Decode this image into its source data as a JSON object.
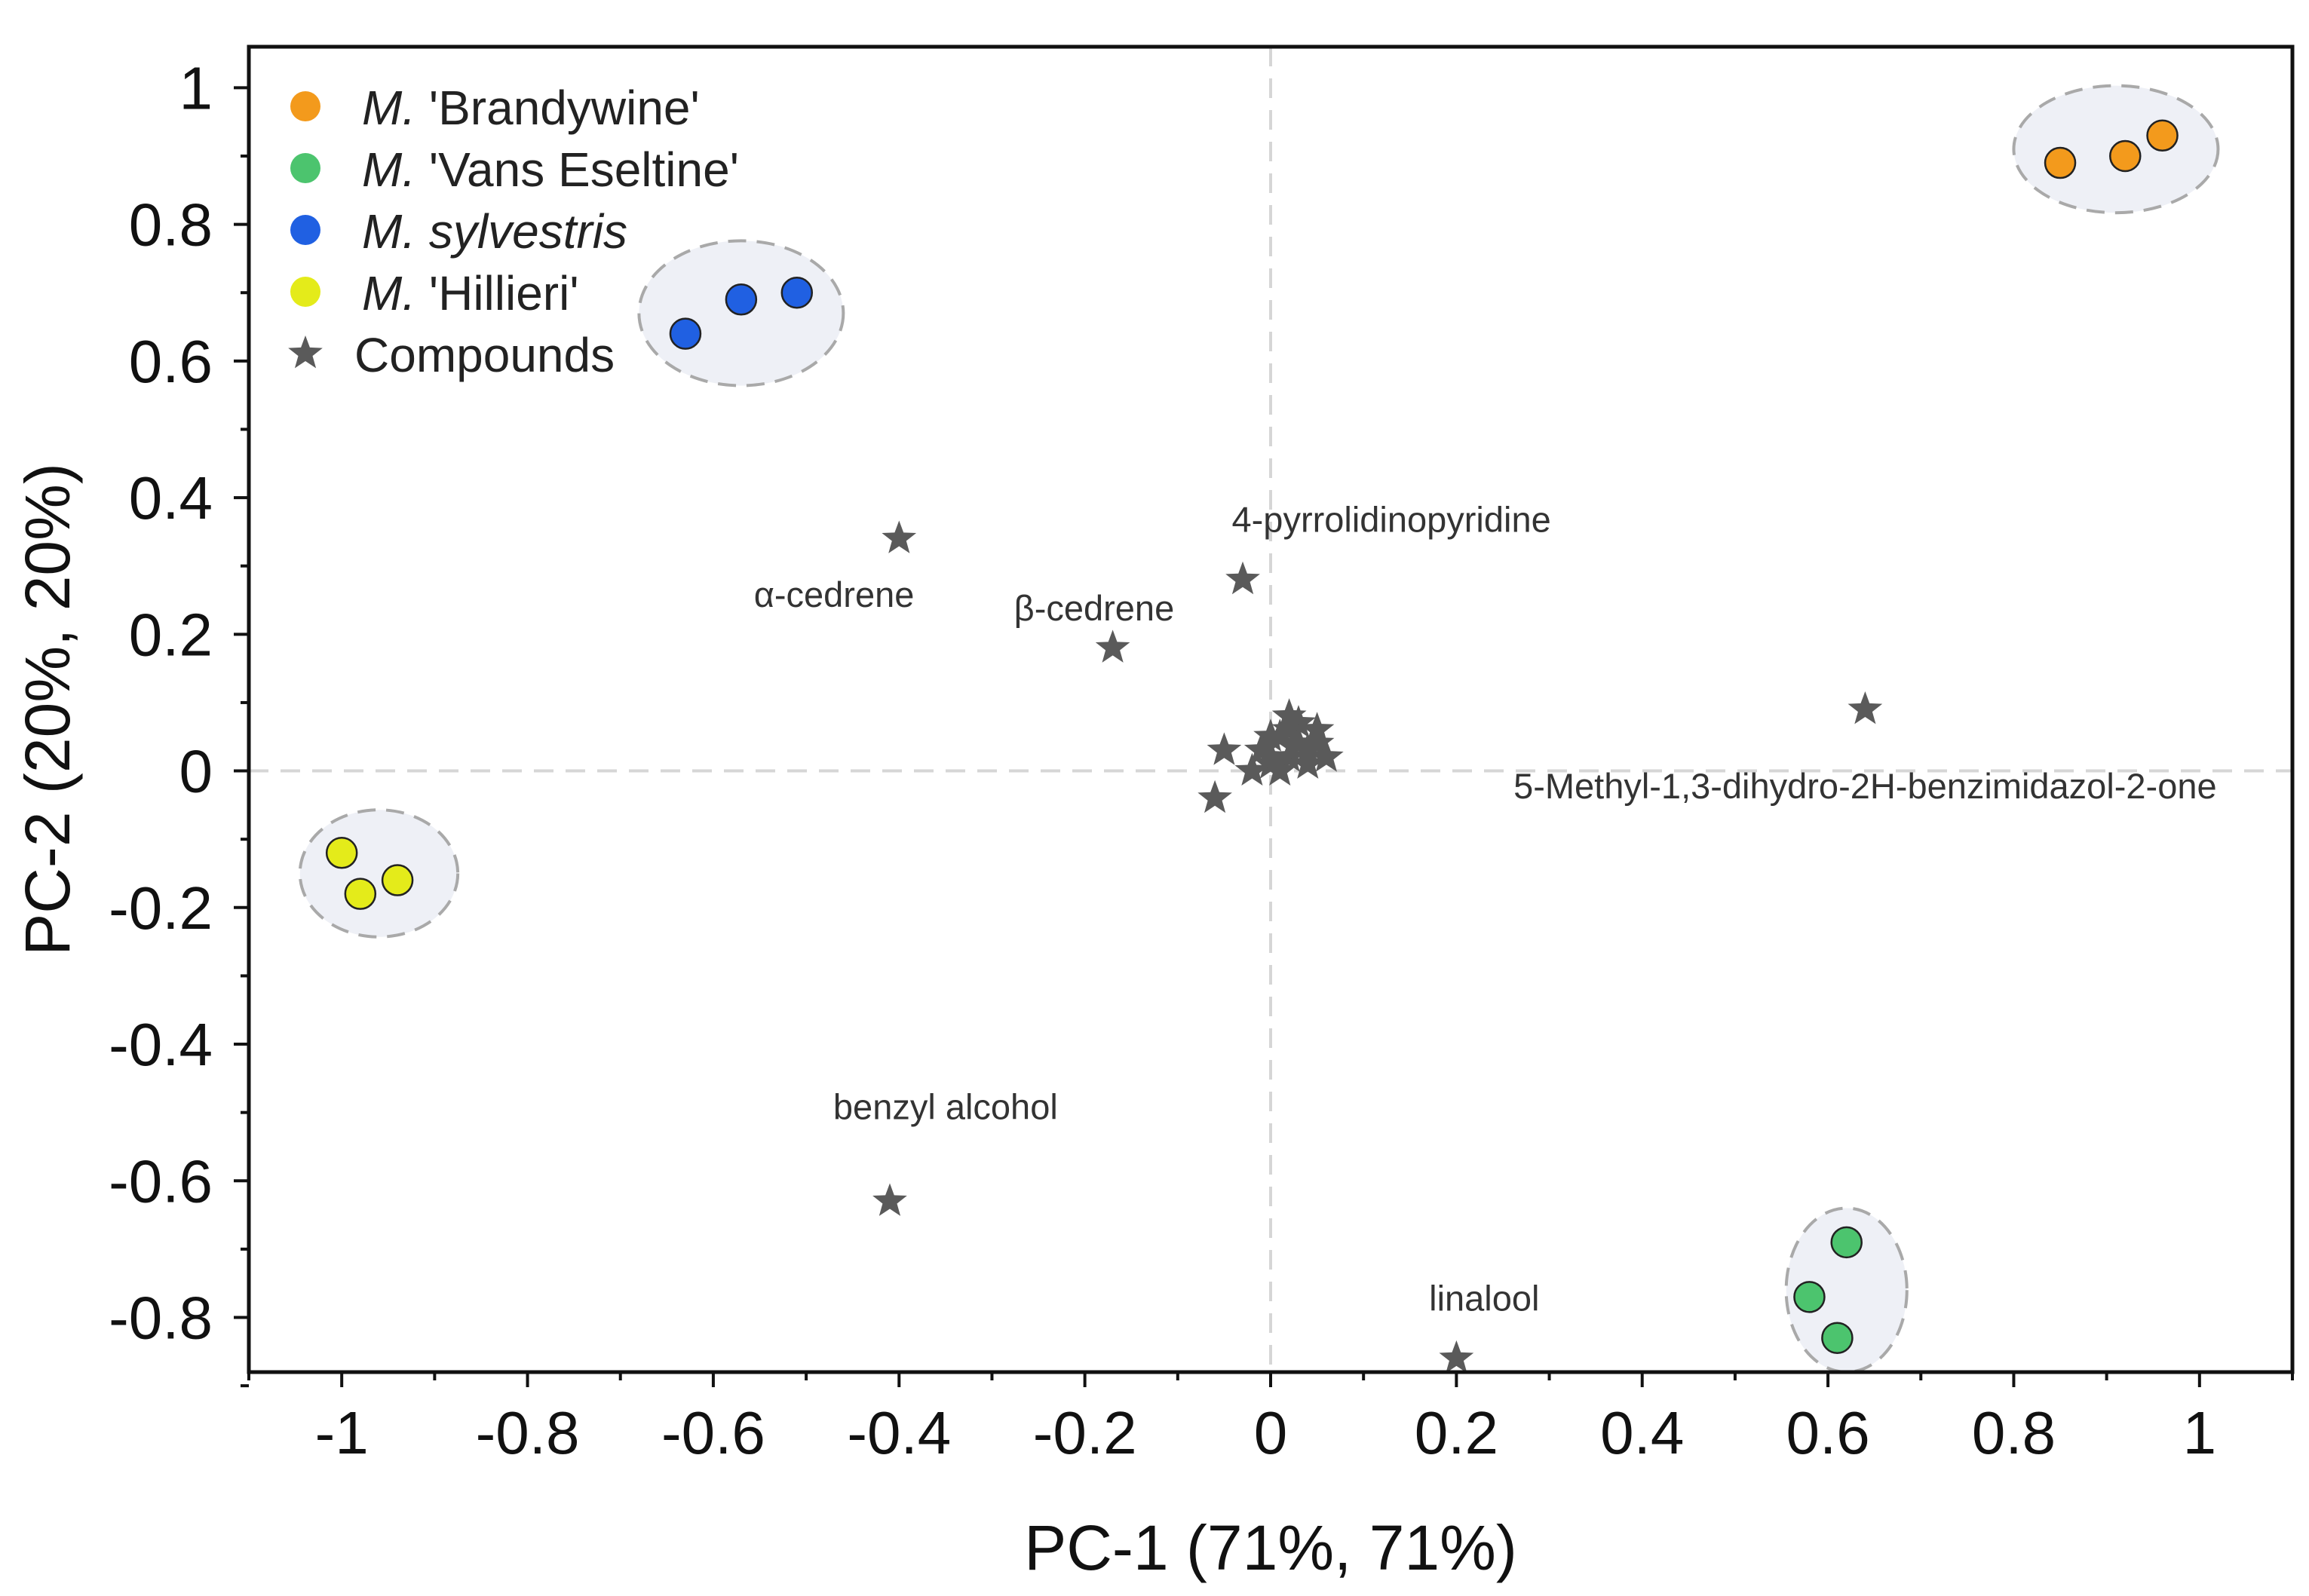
{
  "chart_data": {
    "type": "scatter",
    "xlabel": "PC-1 (71%, 71%)",
    "ylabel": "PC-2 (20%, 20%)",
    "xlim": [
      -1.1,
      1.1
    ],
    "ylim": [
      -0.88,
      1.06
    ],
    "x_ticks": [
      -1,
      -0.8,
      -0.6,
      -0.4,
      -0.2,
      0,
      0.2,
      0.4,
      0.6,
      0.8,
      1
    ],
    "x_tick_labels": [
      "-1",
      "-0.8",
      "-0.6",
      "-0.4",
      "-0.2",
      "0",
      "0.2",
      "0.4",
      "0.6",
      "0.8",
      "1"
    ],
    "y_ticks": [
      -0.8,
      -0.6,
      -0.4,
      -0.2,
      0,
      0.2,
      0.4,
      0.6,
      0.8,
      1
    ],
    "y_tick_labels": [
      "-0.8",
      "-0.6",
      "-0.4",
      "-0.2",
      "0",
      "0.2",
      "0.4",
      "0.6",
      "0.8",
      "1"
    ],
    "reference_lines": {
      "x": 0,
      "y": 0,
      "style": "dashed"
    },
    "legend_position": "top-left",
    "series": [
      {
        "name": "'Brandywine'",
        "italic_prefix": "M.",
        "name_italic": false,
        "color": "#F39A1C",
        "x": [
          0.85,
          0.92,
          0.96
        ],
        "y": [
          0.89,
          0.9,
          0.93
        ]
      },
      {
        "name": "'Vans Eseltine'",
        "italic_prefix": "M.",
        "name_italic": false,
        "color": "#4CC46E",
        "x": [
          0.62,
          0.58,
          0.61
        ],
        "y": [
          -0.69,
          -0.77,
          -0.83
        ]
      },
      {
        "name": "sylvestris",
        "italic_prefix": "M.",
        "name_italic": true,
        "color": "#2060E2",
        "x": [
          -0.63,
          -0.57,
          -0.51
        ],
        "y": [
          0.64,
          0.69,
          0.7
        ]
      },
      {
        "name": "'Hillieri'",
        "italic_prefix": "M.",
        "name_italic": false,
        "color": "#E4EB1A",
        "x": [
          -1.0,
          -0.98,
          -0.94
        ],
        "y": [
          -0.12,
          -0.18,
          -0.16
        ]
      }
    ],
    "compounds": {
      "name": "Compounds",
      "color": "#5A5A5A",
      "x": [
        -0.4,
        -0.03,
        -0.17,
        0.64,
        -0.41,
        0.2,
        -0.05,
        -0.06,
        0.0,
        0.02,
        0.03,
        0.05,
        0.01,
        0.04,
        -0.01,
        0.02,
        0.06,
        0.0,
        0.03,
        0.01,
        0.05,
        -0.02,
        0.04,
        0.02,
        0.0
      ],
      "y": [
        0.34,
        0.28,
        0.18,
        0.09,
        -0.63,
        -0.86,
        0.03,
        -0.04,
        0.05,
        0.02,
        0.07,
        0.04,
        0.0,
        0.01,
        0.03,
        0.06,
        0.02,
        0.01,
        0.04,
        0.05,
        0.06,
        0.0,
        0.03,
        0.08,
        0.02
      ]
    },
    "annotations": [
      {
        "text": "α-cedrene",
        "x": -0.47,
        "y": 0.24
      },
      {
        "text": "4-pyrrolidinopyridine",
        "x": 0.13,
        "y": 0.35
      },
      {
        "text": "β-cedrene",
        "x": -0.19,
        "y": 0.22
      },
      {
        "text": "5-Methyl-1,3-dihydro-2H-benzimidazol-2-one",
        "x": 0.64,
        "y": -0.04
      },
      {
        "text": "benzyl alcohol",
        "x": -0.35,
        "y": -0.51
      },
      {
        "text": "linalool",
        "x": 0.23,
        "y": -0.79
      }
    ],
    "clusters": [
      {
        "cx": 0.91,
        "cy": 0.91,
        "rx": 0.11,
        "ry": 0.093,
        "label": ""
      },
      {
        "cx": -0.57,
        "cy": 0.67,
        "rx": 0.11,
        "ry": 0.106,
        "label": ""
      },
      {
        "cx": -0.96,
        "cy": -0.15,
        "rx": 0.085,
        "ry": 0.093,
        "label": ""
      },
      {
        "cx": 0.62,
        "cy": -0.76,
        "rx": 0.065,
        "ry": 0.12,
        "label": ""
      }
    ]
  }
}
